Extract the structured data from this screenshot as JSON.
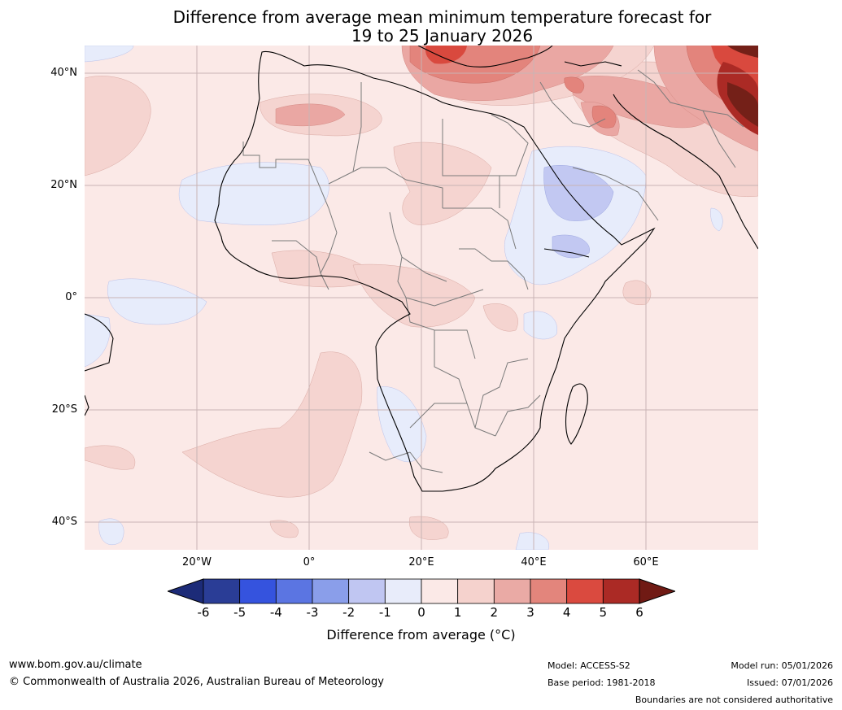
{
  "title": {
    "line1": "Difference from average mean minimum temperature forecast for",
    "line2": "19 to 25 January 2026"
  },
  "map": {
    "region": "Africa and surrounding seas",
    "lat_labels": [
      "40°N",
      "20°N",
      "0°",
      "20°S",
      "40°S"
    ],
    "lon_labels": [
      "20°W",
      "0°",
      "20°E",
      "40°E",
      "60°E"
    ],
    "colors": {
      "background_anomaly": "#fbe9e7",
      "warm_1_2": "#f5d4d0",
      "warm_2_3": "#eaa7a3",
      "warm_3_4": "#e3847c",
      "warm_4_5": "#d9493e",
      "warm_5_6": "#ab2a25",
      "warm_gt6": "#742018",
      "cool_0_m1": "#e7ecfb",
      "cool_m1_m2": "#c2c8f2",
      "coastline": "#000000",
      "border": "#7a7a7a",
      "grid": "#c8b4b4"
    }
  },
  "colorbar": {
    "ticks": [
      "-6",
      "-5",
      "-4",
      "-3",
      "-2",
      "-1",
      "0",
      "1",
      "2",
      "3",
      "4",
      "5",
      "6"
    ],
    "colors": [
      "#2a3d96",
      "#2a45b7",
      "#3553de",
      "#5b75e2",
      "#8a9eea",
      "#c0c6f2",
      "#e8ecfa",
      "#fbe9e7",
      "#f5d2cd",
      "#eaaaa5",
      "#e3857c",
      "#da4a3f",
      "#ab2a25"
    ],
    "under_color": "#1c2b78",
    "over_color": "#701a14",
    "label": "Difference from average (°C)"
  },
  "footer": {
    "url": "www.bom.gov.au/climate",
    "copyright": "© Commonwealth of Australia 2026, Australian Bureau of Meteorology",
    "model": "Model: ACCESS-S2",
    "base_period": "Base period: 1981-2018",
    "model_run": "Model run: 05/01/2026",
    "issued": "Issued: 07/01/2026",
    "disclaimer": "Boundaries are not considered authoritative"
  }
}
